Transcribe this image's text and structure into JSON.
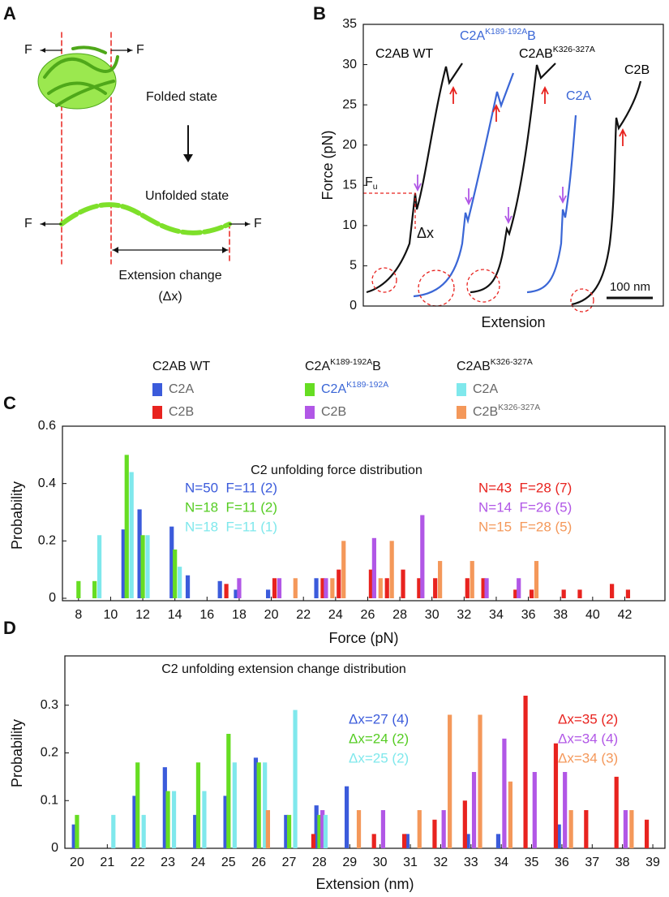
{
  "panel_letters": [
    "A",
    "B",
    "C",
    "D"
  ],
  "diagram": {
    "force_label": "F",
    "folded": "Folded state",
    "unfolded": "Unfolded state",
    "extension_change": "Extension change",
    "delta": "(Δx)"
  },
  "chart_data": [
    {
      "type": "line",
      "xlabel": "Extension",
      "ylabel": "Force (pN)",
      "ylim": [
        0,
        35
      ],
      "yticks": [
        0,
        5,
        10,
        15,
        20,
        25,
        30,
        35
      ],
      "trace_labels": [
        {
          "text": "C2AB WT",
          "color": "#000000"
        },
        {
          "text": "C2A",
          "sup": "K189-192A",
          "tail": "B",
          "color": "#3a66d6"
        },
        {
          "text": "C2AB",
          "sup": "K326-327A",
          "color": "#000000"
        },
        {
          "text": "C2A",
          "color": "#3a66d6"
        },
        {
          "text": "C2B",
          "color": "#000000"
        }
      ],
      "fu_label": "F",
      "fu_sub": "u",
      "dx_label": "Δx",
      "scale_bar": "100 nm"
    },
    {
      "type": "bar",
      "title": "C2 unfolding force distribution",
      "xlabel": "Force (pN)",
      "ylabel": "Probability",
      "xlim": [
        7,
        44.5
      ],
      "xticks": [
        8,
        10,
        12,
        14,
        16,
        18,
        20,
        22,
        24,
        26,
        28,
        30,
        32,
        34,
        36,
        38,
        40,
        42
      ],
      "ylim": [
        0,
        0.6
      ],
      "yticks": [
        0,
        0.2,
        0.4,
        0.6
      ],
      "legend_groups": [
        {
          "title": "C2AB WT"
        },
        {
          "title": "C2A",
          "title_sup": "K189-192A",
          "title_tail": "B"
        },
        {
          "title": "C2AB",
          "title_sup": "K326-327A"
        }
      ],
      "series": [
        {
          "name": "C2A",
          "color": "#3b5bdb",
          "x": [
            10.8,
            11.8,
            13.8,
            14.8,
            16.8,
            17.8,
            19.8,
            22.8
          ],
          "values": [
            0.24,
            0.31,
            0.25,
            0.08,
            0.06,
            0.03,
            0.03,
            0.07
          ]
        },
        {
          "name": "C2B",
          "color": "#e8231f",
          "x": [
            17.2,
            20.2,
            23.2,
            24.2,
            26.2,
            27.2,
            28.2,
            29.2,
            30.2,
            32.2,
            33.2,
            35.2,
            36.2,
            38.2,
            39.2,
            41.2,
            42.2
          ],
          "values": [
            0.05,
            0.07,
            0.07,
            0.1,
            0.1,
            0.07,
            0.1,
            0.07,
            0.07,
            0.07,
            0.07,
            0.03,
            0.03,
            0.03,
            0.03,
            0.05,
            0.03
          ]
        },
        {
          "name": "C2A",
          "name_sup": "K189-192A",
          "color": "#66dd22",
          "x": [
            8,
            9,
            11,
            12,
            14
          ],
          "values": [
            0.06,
            0.06,
            0.5,
            0.22,
            0.17
          ]
        },
        {
          "name": "C2B",
          "color": "#b157e6",
          "x": [
            18,
            20.5,
            23.4,
            26.4,
            29.4,
            33.4,
            35.4
          ],
          "values": [
            0.07,
            0.07,
            0.07,
            0.21,
            0.29,
            0.07,
            0.07
          ]
        },
        {
          "name": "C2A",
          "color": "#7fe8ec",
          "x": [
            9.3,
            11.3,
            12.3,
            14.3
          ],
          "values": [
            0.22,
            0.44,
            0.22,
            0.11
          ]
        },
        {
          "name": "C2B",
          "name_sup": "K326-327A",
          "color": "#f4985a",
          "x": [
            21.5,
            23.8,
            24.5,
            26.8,
            27.5,
            30.5,
            32.5,
            36.5
          ],
          "values": [
            0.07,
            0.07,
            0.2,
            0.07,
            0.2,
            0.13,
            0.13,
            0.13
          ]
        }
      ],
      "annotations": [
        {
          "text": "N=50  F=11 (2)",
          "color": "#3b5bdb"
        },
        {
          "text": "N=18  F=11 (2)",
          "color": "#55cc22"
        },
        {
          "text": "N=18  F=11 (1)",
          "color": "#7fe8ec"
        },
        {
          "text": "N=43  F=28 (7)",
          "color": "#e8231f"
        },
        {
          "text": "N=14  F=26 (5)",
          "color": "#b157e6"
        },
        {
          "text": "N=15  F=28 (5)",
          "color": "#f4985a"
        }
      ]
    },
    {
      "type": "bar",
      "title": "C2 unfolding extension change distribution",
      "xlabel": "Extension (nm)",
      "ylabel": "Probability",
      "xlim": [
        19.6,
        39.4
      ],
      "xticks": [
        20,
        21,
        22,
        23,
        24,
        25,
        26,
        27,
        28,
        29,
        30,
        31,
        32,
        33,
        34,
        35,
        36,
        37,
        38,
        39
      ],
      "ylim": [
        0,
        0.4
      ],
      "yticks": [
        0,
        0.1,
        0.2,
        0.3
      ],
      "series": [
        {
          "color": "#3b5bdb",
          "x": [
            19.9,
            21.9,
            22.9,
            23.9,
            24.9,
            25.9,
            26.9,
            27.9,
            28.9,
            30.9,
            32.9,
            33.9,
            35.9
          ],
          "values": [
            0.05,
            0.11,
            0.17,
            0.07,
            0.11,
            0.19,
            0.07,
            0.09,
            0.13,
            0.03,
            0.03,
            0.03,
            0.05
          ]
        },
        {
          "color": "#e8231f",
          "x": [
            27.8,
            29.8,
            30.8,
            31.8,
            32.8,
            34.8,
            35.8,
            36.8,
            37.8,
            38.8
          ],
          "values": [
            0.03,
            0.03,
            0.03,
            0.06,
            0.1,
            0.32,
            0.22,
            0.08,
            0.15,
            0.06
          ]
        },
        {
          "color": "#66dd22",
          "x": [
            20,
            22,
            23,
            24,
            25,
            26,
            27,
            28
          ],
          "values": [
            0.07,
            0.18,
            0.12,
            0.18,
            0.24,
            0.18,
            0.07,
            0.07
          ]
        },
        {
          "color": "#b157e6",
          "x": [
            28.1,
            30.1,
            32.1,
            33.1,
            34.1,
            35.1,
            36.1,
            38.1
          ],
          "values": [
            0.08,
            0.08,
            0.08,
            0.16,
            0.23,
            0.16,
            0.16,
            0.08
          ]
        },
        {
          "color": "#7fe8ec",
          "x": [
            21.2,
            22.2,
            23.2,
            24.2,
            25.2,
            26.2,
            27.2,
            28.2
          ],
          "values": [
            0.07,
            0.07,
            0.12,
            0.12,
            0.18,
            0.18,
            0.29,
            0.07
          ]
        },
        {
          "color": "#f4985a",
          "x": [
            26.3,
            29.3,
            31.3,
            32.3,
            33.3,
            34.3,
            36.3,
            38.3
          ],
          "values": [
            0.08,
            0.08,
            0.08,
            0.28,
            0.28,
            0.14,
            0.08,
            0.08
          ]
        }
      ],
      "annotations": [
        {
          "text": "Δx=27 (4)",
          "color": "#3b5bdb"
        },
        {
          "text": "Δx=24 (2)",
          "color": "#55cc22"
        },
        {
          "text": "Δx=25 (2)",
          "color": "#7fe8ec"
        },
        {
          "text": "Δx=35 (2)",
          "color": "#e8231f"
        },
        {
          "text": "Δx=34 (4)",
          "color": "#b157e6"
        },
        {
          "text": "Δx=34 (3)",
          "color": "#f4985a"
        }
      ]
    }
  ]
}
